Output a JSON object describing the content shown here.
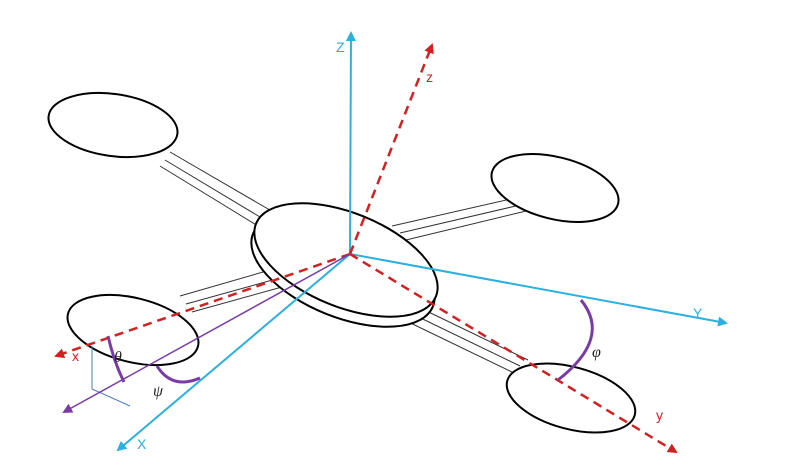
{
  "colors": {
    "inertial_axis": "#2bb0e0",
    "body_axis": "#d42020",
    "angle_arc": "#7a3aa8",
    "frame": "#000000",
    "arm": "#333333",
    "projection": "#4a7bbf"
  },
  "axes": {
    "inertial": {
      "X": "X",
      "Y": "Y",
      "Z": "Z"
    },
    "body": {
      "x": "x",
      "y": "y",
      "z": "z"
    }
  },
  "angles": {
    "theta": "θ",
    "psi": "ψ",
    "phi": "φ"
  }
}
